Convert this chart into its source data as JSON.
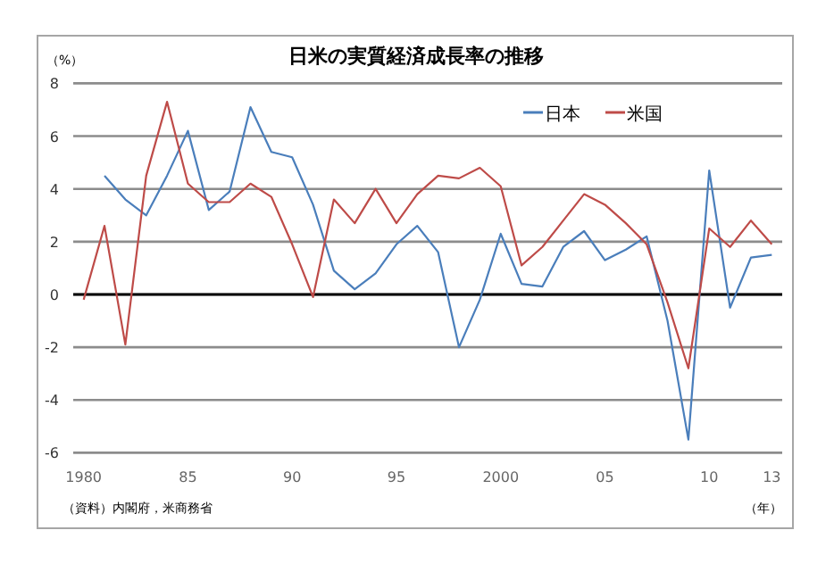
{
  "chart_data": {
    "type": "line",
    "title": "日米の実質経済成長率の推移",
    "ylabel": "（%）",
    "xlabel": "（年）",
    "annotations": [
      "（資料）内閣府，米商務省"
    ],
    "categories": [
      "1980",
      null,
      null,
      null,
      null,
      "85",
      null,
      null,
      null,
      null,
      "90",
      null,
      null,
      null,
      null,
      "95",
      null,
      null,
      null,
      null,
      "2000",
      null,
      null,
      null,
      null,
      "05",
      null,
      null,
      null,
      null,
      "10",
      null,
      null,
      "13"
    ],
    "series": [
      {
        "name": "日本",
        "color": "#4a7ebb",
        "values": [
          null,
          4.5,
          3.6,
          3.0,
          4.5,
          6.2,
          3.2,
          3.9,
          7.1,
          5.4,
          5.2,
          3.4,
          0.9,
          0.2,
          0.8,
          1.9,
          2.6,
          1.6,
          -2.0,
          -0.2,
          2.3,
          0.4,
          0.3,
          1.8,
          2.4,
          1.3,
          1.7,
          2.2,
          -1.0,
          -5.5,
          4.7,
          -0.5,
          1.4,
          1.5
        ]
      },
      {
        "name": "米国",
        "color": "#be4b48",
        "values": [
          -0.2,
          2.6,
          -1.9,
          4.5,
          7.3,
          4.2,
          3.5,
          3.5,
          4.2,
          3.7,
          1.9,
          -0.1,
          3.6,
          2.7,
          4.0,
          2.7,
          3.8,
          4.5,
          4.4,
          4.8,
          4.1,
          1.1,
          1.8,
          2.8,
          3.8,
          3.4,
          2.7,
          1.9,
          -0.3,
          -2.8,
          2.5,
          1.8,
          2.8,
          1.9
        ]
      }
    ],
    "ylim": [
      -6,
      8
    ],
    "yticks": [
      -6,
      -4,
      -2,
      0,
      2,
      4,
      6,
      8
    ],
    "ref_lines": [
      {
        "axis": "y",
        "value": 0,
        "color": "#000000"
      }
    ],
    "grid": "y",
    "legend": "top right",
    "marker": "none",
    "line_style": "solid"
  }
}
